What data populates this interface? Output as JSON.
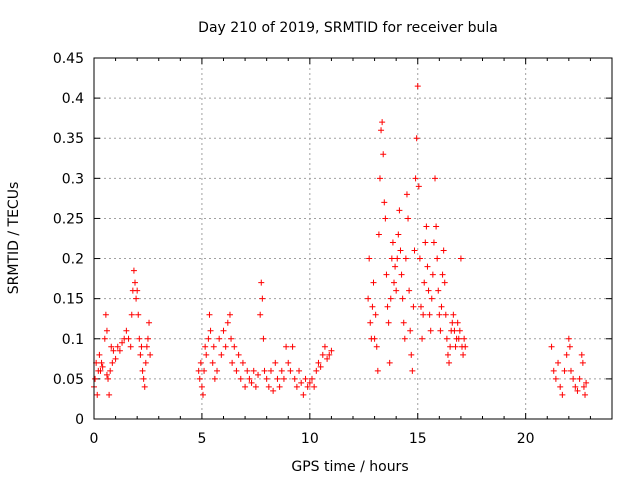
{
  "chart_data": {
    "type": "scatter",
    "title": "Day 210 of 2019, SRMTID for receiver bula",
    "xlabel": "GPS time / hours",
    "ylabel": "SRMTID / TECUs",
    "xlim": [
      0,
      24
    ],
    "ylim": [
      0,
      0.45
    ],
    "grid": true,
    "marker": "+",
    "color": "#ff0000",
    "x_ticks": [
      0,
      5,
      10,
      15,
      20
    ],
    "x_tick_labels": [
      "0",
      "5",
      "10",
      "15",
      "20"
    ],
    "y_ticks": [
      0,
      0.05,
      0.1,
      0.15,
      0.2,
      0.25,
      0.3,
      0.35,
      0.4,
      0.45
    ],
    "y_tick_labels": [
      "0",
      "0.05",
      "0.1",
      "0.15",
      "0.2",
      "0.25",
      "0.3",
      "0.35",
      "0.4",
      "0.45"
    ],
    "series": [
      {
        "name": "SRMTID",
        "points": [
          [
            0.0,
            0.04
          ],
          [
            0.05,
            0.05
          ],
          [
            0.1,
            0.07
          ],
          [
            0.15,
            0.03
          ],
          [
            0.2,
            0.06
          ],
          [
            0.25,
            0.08
          ],
          [
            0.3,
            0.06
          ],
          [
            0.35,
            0.07
          ],
          [
            0.4,
            0.065
          ],
          [
            0.5,
            0.1
          ],
          [
            0.55,
            0.13
          ],
          [
            0.6,
            0.11
          ],
          [
            0.6,
            0.055
          ],
          [
            0.65,
            0.05
          ],
          [
            0.7,
            0.03
          ],
          [
            0.75,
            0.06
          ],
          [
            0.8,
            0.09
          ],
          [
            0.85,
            0.07
          ],
          [
            0.9,
            0.085
          ],
          [
            1.0,
            0.075
          ],
          [
            1.1,
            0.09
          ],
          [
            1.2,
            0.085
          ],
          [
            1.3,
            0.095
          ],
          [
            1.4,
            0.1
          ],
          [
            1.5,
            0.11
          ],
          [
            1.6,
            0.1
          ],
          [
            1.7,
            0.09
          ],
          [
            1.75,
            0.13
          ],
          [
            1.8,
            0.16
          ],
          [
            1.85,
            0.185
          ],
          [
            1.9,
            0.17
          ],
          [
            1.95,
            0.15
          ],
          [
            2.0,
            0.16
          ],
          [
            2.05,
            0.13
          ],
          [
            2.1,
            0.1
          ],
          [
            2.15,
            0.08
          ],
          [
            2.2,
            0.09
          ],
          [
            2.25,
            0.06
          ],
          [
            2.3,
            0.05
          ],
          [
            2.35,
            0.04
          ],
          [
            2.4,
            0.07
          ],
          [
            2.45,
            0.09
          ],
          [
            2.5,
            0.1
          ],
          [
            2.55,
            0.12
          ],
          [
            2.6,
            0.08
          ],
          [
            4.85,
            0.06
          ],
          [
            4.9,
            0.05
          ],
          [
            4.95,
            0.07
          ],
          [
            5.0,
            0.04
          ],
          [
            5.05,
            0.03
          ],
          [
            5.1,
            0.06
          ],
          [
            5.15,
            0.09
          ],
          [
            5.2,
            0.08
          ],
          [
            5.3,
            0.1
          ],
          [
            5.35,
            0.13
          ],
          [
            5.4,
            0.11
          ],
          [
            5.5,
            0.07
          ],
          [
            5.55,
            0.09
          ],
          [
            5.6,
            0.05
          ],
          [
            5.7,
            0.06
          ],
          [
            5.8,
            0.1
          ],
          [
            5.9,
            0.08
          ],
          [
            6.0,
            0.11
          ],
          [
            6.1,
            0.09
          ],
          [
            6.2,
            0.12
          ],
          [
            6.3,
            0.13
          ],
          [
            6.35,
            0.1
          ],
          [
            6.4,
            0.07
          ],
          [
            6.5,
            0.09
          ],
          [
            6.6,
            0.06
          ],
          [
            6.7,
            0.08
          ],
          [
            6.8,
            0.05
          ],
          [
            6.9,
            0.07
          ],
          [
            7.0,
            0.04
          ],
          [
            7.1,
            0.06
          ],
          [
            7.2,
            0.05
          ],
          [
            7.3,
            0.045
          ],
          [
            7.4,
            0.06
          ],
          [
            7.5,
            0.04
          ],
          [
            7.6,
            0.055
          ],
          [
            7.7,
            0.13
          ],
          [
            7.75,
            0.17
          ],
          [
            7.8,
            0.15
          ],
          [
            7.85,
            0.1
          ],
          [
            7.9,
            0.06
          ],
          [
            8.0,
            0.05
          ],
          [
            8.1,
            0.04
          ],
          [
            8.2,
            0.06
          ],
          [
            8.3,
            0.035
          ],
          [
            8.4,
            0.07
          ],
          [
            8.5,
            0.05
          ],
          [
            8.6,
            0.04
          ],
          [
            8.7,
            0.06
          ],
          [
            8.8,
            0.05
          ],
          [
            8.9,
            0.09
          ],
          [
            9.0,
            0.07
          ],
          [
            9.1,
            0.06
          ],
          [
            9.2,
            0.09
          ],
          [
            9.3,
            0.05
          ],
          [
            9.4,
            0.04
          ],
          [
            9.5,
            0.06
          ],
          [
            9.6,
            0.045
          ],
          [
            9.7,
            0.03
          ],
          [
            9.8,
            0.05
          ],
          [
            9.9,
            0.04
          ],
          [
            10.0,
            0.045
          ],
          [
            10.1,
            0.05
          ],
          [
            10.2,
            0.04
          ],
          [
            10.3,
            0.06
          ],
          [
            10.4,
            0.07
          ],
          [
            10.5,
            0.065
          ],
          [
            10.6,
            0.08
          ],
          [
            10.7,
            0.09
          ],
          [
            10.8,
            0.075
          ],
          [
            10.9,
            0.08
          ],
          [
            11.0,
            0.085
          ],
          [
            12.7,
            0.15
          ],
          [
            12.75,
            0.2
          ],
          [
            12.8,
            0.12
          ],
          [
            12.85,
            0.1
          ],
          [
            12.9,
            0.14
          ],
          [
            12.95,
            0.17
          ],
          [
            13.0,
            0.1
          ],
          [
            13.05,
            0.13
          ],
          [
            13.1,
            0.09
          ],
          [
            13.15,
            0.06
          ],
          [
            13.2,
            0.23
          ],
          [
            13.25,
            0.3
          ],
          [
            13.3,
            0.36
          ],
          [
            13.35,
            0.37
          ],
          [
            13.4,
            0.33
          ],
          [
            13.45,
            0.27
          ],
          [
            13.5,
            0.25
          ],
          [
            13.55,
            0.18
          ],
          [
            13.6,
            0.14
          ],
          [
            13.65,
            0.12
          ],
          [
            13.7,
            0.07
          ],
          [
            13.75,
            0.15
          ],
          [
            13.8,
            0.2
          ],
          [
            13.85,
            0.22
          ],
          [
            13.9,
            0.17
          ],
          [
            13.95,
            0.19
          ],
          [
            14.0,
            0.16
          ],
          [
            14.05,
            0.2
          ],
          [
            14.1,
            0.23
          ],
          [
            14.15,
            0.26
          ],
          [
            14.2,
            0.21
          ],
          [
            14.25,
            0.18
          ],
          [
            14.3,
            0.15
          ],
          [
            14.35,
            0.12
          ],
          [
            14.4,
            0.1
          ],
          [
            14.45,
            0.2
          ],
          [
            14.5,
            0.28
          ],
          [
            14.55,
            0.25
          ],
          [
            14.6,
            0.16
          ],
          [
            14.65,
            0.11
          ],
          [
            14.7,
            0.08
          ],
          [
            14.75,
            0.06
          ],
          [
            14.8,
            0.14
          ],
          [
            14.85,
            0.21
          ],
          [
            14.9,
            0.3
          ],
          [
            14.95,
            0.35
          ],
          [
            15.0,
            0.415
          ],
          [
            15.05,
            0.29
          ],
          [
            15.1,
            0.2
          ],
          [
            15.15,
            0.14
          ],
          [
            15.2,
            0.1
          ],
          [
            15.25,
            0.13
          ],
          [
            15.3,
            0.17
          ],
          [
            15.35,
            0.22
          ],
          [
            15.4,
            0.24
          ],
          [
            15.45,
            0.19
          ],
          [
            15.5,
            0.16
          ],
          [
            15.55,
            0.13
          ],
          [
            15.6,
            0.11
          ],
          [
            15.65,
            0.15
          ],
          [
            15.7,
            0.18
          ],
          [
            15.75,
            0.22
          ],
          [
            15.8,
            0.3
          ],
          [
            15.85,
            0.24
          ],
          [
            15.9,
            0.2
          ],
          [
            15.95,
            0.16
          ],
          [
            16.0,
            0.13
          ],
          [
            16.05,
            0.11
          ],
          [
            16.1,
            0.14
          ],
          [
            16.15,
            0.18
          ],
          [
            16.2,
            0.21
          ],
          [
            16.25,
            0.17
          ],
          [
            16.3,
            0.13
          ],
          [
            16.35,
            0.1
          ],
          [
            16.4,
            0.08
          ],
          [
            16.45,
            0.07
          ],
          [
            16.5,
            0.09
          ],
          [
            16.55,
            0.11
          ],
          [
            16.6,
            0.12
          ],
          [
            16.65,
            0.13
          ],
          [
            16.7,
            0.11
          ],
          [
            16.75,
            0.09
          ],
          [
            16.8,
            0.1
          ],
          [
            16.85,
            0.12
          ],
          [
            16.9,
            0.1
          ],
          [
            16.95,
            0.11
          ],
          [
            17.0,
            0.2
          ],
          [
            17.05,
            0.09
          ],
          [
            17.1,
            0.08
          ],
          [
            17.15,
            0.1
          ],
          [
            17.2,
            0.09
          ],
          [
            21.2,
            0.09
          ],
          [
            21.3,
            0.06
          ],
          [
            21.4,
            0.05
          ],
          [
            21.5,
            0.07
          ],
          [
            21.6,
            0.04
          ],
          [
            21.7,
            0.03
          ],
          [
            21.8,
            0.06
          ],
          [
            21.9,
            0.08
          ],
          [
            22.0,
            0.1
          ],
          [
            22.05,
            0.09
          ],
          [
            22.1,
            0.06
          ],
          [
            22.2,
            0.05
          ],
          [
            22.3,
            0.04
          ],
          [
            22.4,
            0.035
          ],
          [
            22.5,
            0.05
          ],
          [
            22.6,
            0.08
          ],
          [
            22.65,
            0.07
          ],
          [
            22.7,
            0.04
          ],
          [
            22.75,
            0.03
          ],
          [
            22.8,
            0.045
          ]
        ]
      }
    ]
  }
}
